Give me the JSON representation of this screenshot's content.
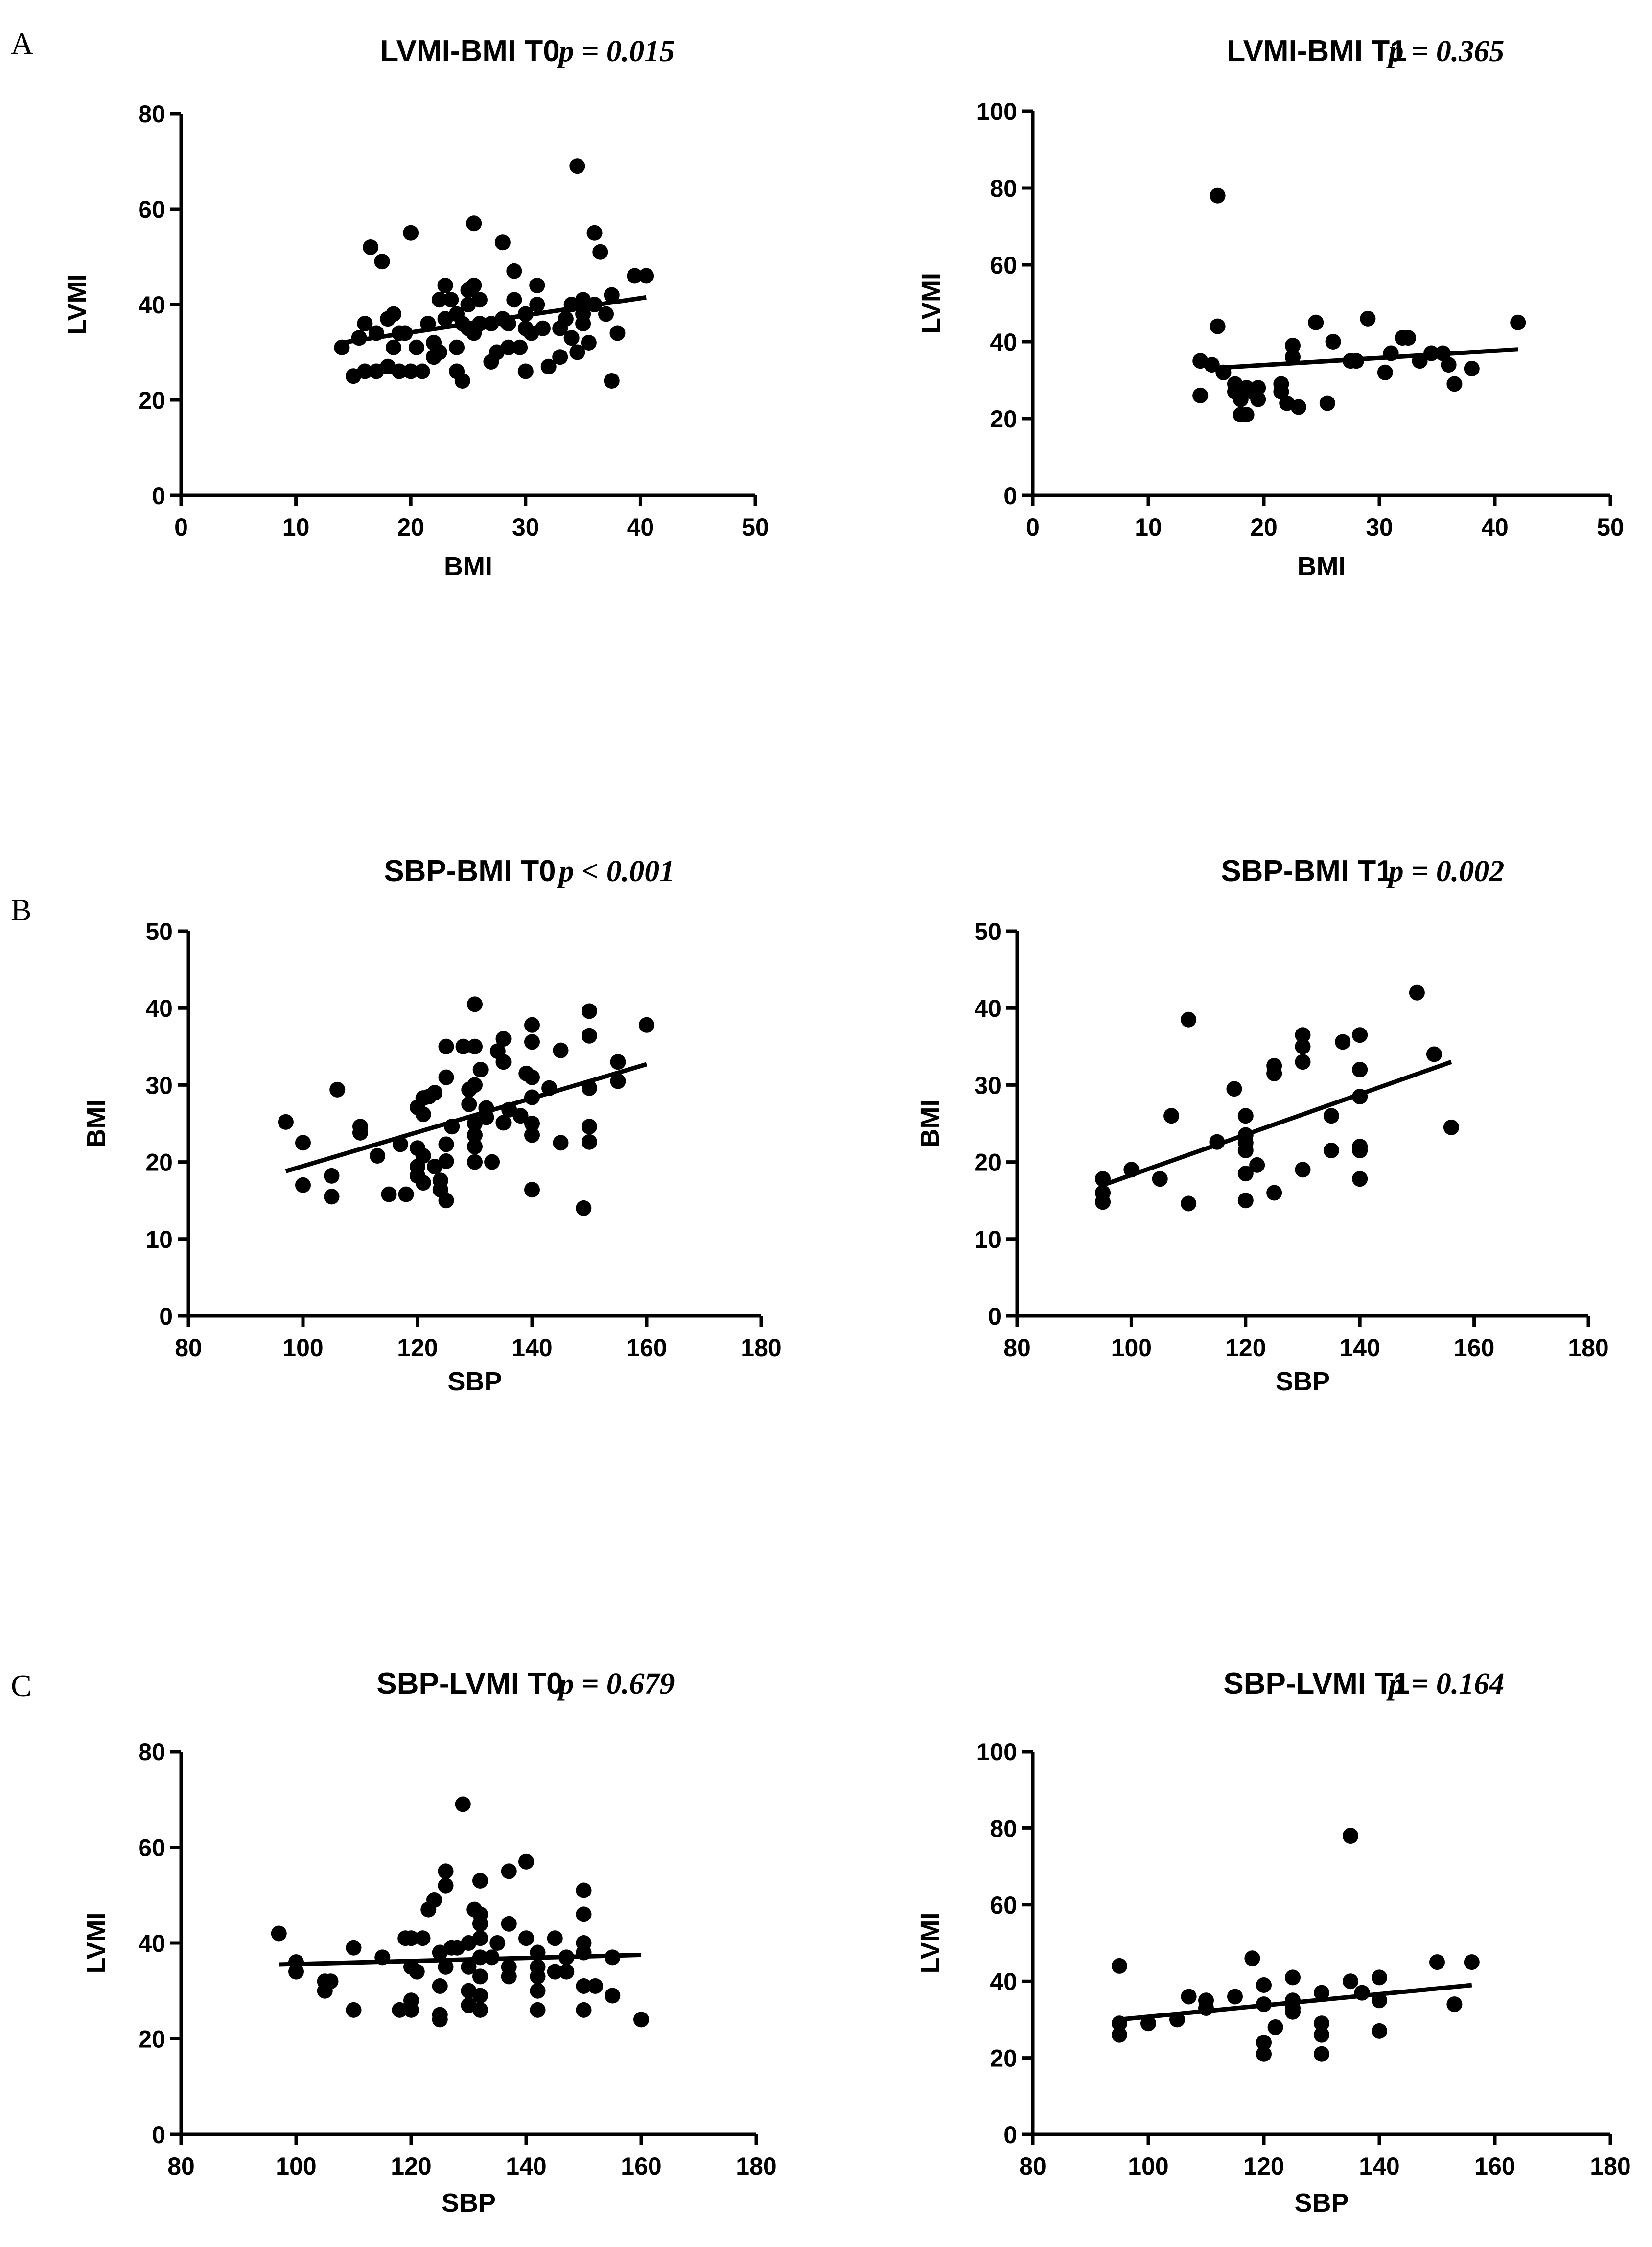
{
  "panel_letters": [
    "A",
    "B",
    "C"
  ],
  "chart_data": [
    {
      "type": "scatter",
      "panel": "A",
      "title": "LVMI-BMI T0",
      "p_value": "p = 0.015",
      "xlabel": "BMI",
      "ylabel": "LVMI",
      "xlim": [
        0,
        50
      ],
      "ylim": [
        0,
        80
      ],
      "xticks": [
        0,
        10,
        20,
        30,
        40,
        50
      ],
      "yticks": [
        0,
        20,
        40,
        60,
        80
      ],
      "fit_line": [
        [
          14,
          32
        ],
        [
          40.5,
          41.5
        ]
      ],
      "points": [
        [
          14,
          31
        ],
        [
          15,
          25
        ],
        [
          15.5,
          33
        ],
        [
          16,
          36
        ],
        [
          16,
          26
        ],
        [
          16.5,
          52
        ],
        [
          17,
          26
        ],
        [
          17,
          34
        ],
        [
          17.5,
          49
        ],
        [
          18,
          27
        ],
        [
          18,
          37
        ],
        [
          18.5,
          31
        ],
        [
          18.5,
          38
        ],
        [
          19,
          26
        ],
        [
          19,
          34
        ],
        [
          19.5,
          34
        ],
        [
          20,
          26
        ],
        [
          20,
          55
        ],
        [
          20.5,
          31
        ],
        [
          21,
          26
        ],
        [
          21.5,
          36
        ],
        [
          22,
          29
        ],
        [
          22,
          32
        ],
        [
          22.5,
          30
        ],
        [
          22.5,
          41
        ],
        [
          23,
          37
        ],
        [
          23,
          44
        ],
        [
          23.5,
          41
        ],
        [
          24,
          26
        ],
        [
          24,
          31
        ],
        [
          24,
          38
        ],
        [
          24.5,
          24
        ],
        [
          24.5,
          36
        ],
        [
          25,
          35
        ],
        [
          25,
          40
        ],
        [
          25,
          43
        ],
        [
          25.5,
          34
        ],
        [
          25.5,
          44
        ],
        [
          25.5,
          57
        ],
        [
          26,
          36
        ],
        [
          26,
          41
        ],
        [
          27,
          28
        ],
        [
          27,
          36
        ],
        [
          27.5,
          30
        ],
        [
          28,
          53
        ],
        [
          28,
          37
        ],
        [
          28.5,
          31
        ],
        [
          28.5,
          36
        ],
        [
          29,
          47
        ],
        [
          29,
          41
        ],
        [
          29.5,
          31
        ],
        [
          30,
          26
        ],
        [
          30,
          35
        ],
        [
          30,
          38
        ],
        [
          30.5,
          34
        ],
        [
          31,
          40
        ],
        [
          31,
          44
        ],
        [
          31.5,
          35
        ],
        [
          32,
          27
        ],
        [
          33,
          29
        ],
        [
          33,
          35
        ],
        [
          33.5,
          37
        ],
        [
          34,
          40
        ],
        [
          34,
          33
        ],
        [
          34.5,
          69
        ],
        [
          34.5,
          30
        ],
        [
          35,
          41
        ],
        [
          35,
          36
        ],
        [
          35,
          38
        ],
        [
          35.5,
          32
        ],
        [
          36,
          55
        ],
        [
          36,
          40
        ],
        [
          36.5,
          51
        ],
        [
          37,
          38
        ],
        [
          37.5,
          42
        ],
        [
          37.5,
          24
        ],
        [
          38,
          34
        ],
        [
          39.5,
          46
        ],
        [
          40.5,
          46
        ]
      ]
    },
    {
      "type": "scatter",
      "panel": "A",
      "title": "LVMI-BMI T1",
      "p_value": "p = 0.365",
      "xlabel": "BMI",
      "ylabel": "LVMI",
      "xlim": [
        0,
        50
      ],
      "ylim": [
        0,
        100
      ],
      "xticks": [
        0,
        10,
        20,
        30,
        40,
        50
      ],
      "yticks": [
        0,
        20,
        40,
        60,
        80,
        100
      ],
      "fit_line": [
        [
          15,
          33
        ],
        [
          42,
          38
        ]
      ],
      "points": [
        [
          14.5,
          35
        ],
        [
          14.5,
          26
        ],
        [
          15.5,
          34
        ],
        [
          16,
          44
        ],
        [
          16,
          78
        ],
        [
          16.5,
          32
        ],
        [
          17.5,
          29
        ],
        [
          17.5,
          27
        ],
        [
          18,
          21
        ],
        [
          18,
          25
        ],
        [
          18.5,
          21
        ],
        [
          18.5,
          28
        ],
        [
          19,
          27
        ],
        [
          19.5,
          25
        ],
        [
          19.5,
          28
        ],
        [
          21.5,
          27
        ],
        [
          21.5,
          29
        ],
        [
          22,
          24
        ],
        [
          22.5,
          39
        ],
        [
          22.5,
          36
        ],
        [
          23,
          23
        ],
        [
          24.5,
          45
        ],
        [
          25.5,
          24
        ],
        [
          26,
          40
        ],
        [
          27.5,
          35
        ],
        [
          28,
          35
        ],
        [
          29,
          46
        ],
        [
          30.5,
          32
        ],
        [
          31,
          37
        ],
        [
          32,
          41
        ],
        [
          32.5,
          41
        ],
        [
          33.5,
          35
        ],
        [
          34.5,
          37
        ],
        [
          35.5,
          37
        ],
        [
          36,
          34
        ],
        [
          36.5,
          29
        ],
        [
          38,
          33
        ],
        [
          42,
          45
        ]
      ]
    },
    {
      "type": "scatter",
      "panel": "B",
      "title": "SBP-BMI T0",
      "p_value": "p < 0.001",
      "xlabel": "SBP",
      "ylabel": "BMI",
      "xlim": [
        80,
        180
      ],
      "ylim": [
        0,
        50
      ],
      "xticks": [
        80,
        100,
        120,
        140,
        160,
        180
      ],
      "yticks": [
        0,
        10,
        20,
        30,
        40,
        50
      ],
      "fit_line": [
        [
          97,
          18.8
        ],
        [
          160,
          32.7
        ]
      ],
      "points": [
        [
          97,
          25.2
        ],
        [
          100,
          22.5
        ],
        [
          100,
          17
        ],
        [
          105,
          18.2
        ],
        [
          105,
          15.5
        ],
        [
          106,
          29.4
        ],
        [
          110,
          24.6
        ],
        [
          110,
          23.8
        ],
        [
          113,
          20.8
        ],
        [
          115,
          15.8
        ],
        [
          117,
          22.3
        ],
        [
          118,
          15.8
        ],
        [
          120,
          27.1
        ],
        [
          120,
          21.8
        ],
        [
          120,
          19.4
        ],
        [
          120,
          18.2
        ],
        [
          121,
          26.2
        ],
        [
          121,
          28.3
        ],
        [
          121,
          20.8
        ],
        [
          121,
          17.3
        ],
        [
          122,
          28.5
        ],
        [
          123,
          29
        ],
        [
          123,
          19.4
        ],
        [
          124,
          17.6
        ],
        [
          124,
          16.4
        ],
        [
          125,
          35
        ],
        [
          125,
          31
        ],
        [
          125,
          22.3
        ],
        [
          125,
          20.1
        ],
        [
          125,
          15
        ],
        [
          126,
          24.6
        ],
        [
          128,
          35
        ],
        [
          129,
          29.4
        ],
        [
          129,
          27.5
        ],
        [
          130,
          40.5
        ],
        [
          130,
          35
        ],
        [
          130,
          30
        ],
        [
          130,
          25
        ],
        [
          130,
          23.5
        ],
        [
          130,
          22
        ],
        [
          130,
          20
        ],
        [
          131,
          32
        ],
        [
          132,
          27
        ],
        [
          132,
          25.8
        ],
        [
          133,
          20
        ],
        [
          134,
          34.4
        ],
        [
          135,
          36
        ],
        [
          135,
          33
        ],
        [
          135,
          25.1
        ],
        [
          136,
          26.8
        ],
        [
          138,
          26
        ],
        [
          139,
          31.5
        ],
        [
          140,
          37.8
        ],
        [
          140,
          35.6
        ],
        [
          140,
          31
        ],
        [
          140,
          28.4
        ],
        [
          140,
          25
        ],
        [
          140,
          23.5
        ],
        [
          140,
          16.4
        ],
        [
          143,
          29.6
        ],
        [
          145,
          34.5
        ],
        [
          145,
          22.5
        ],
        [
          149,
          14
        ],
        [
          150,
          39.6
        ],
        [
          150,
          36.4
        ],
        [
          150,
          29.6
        ],
        [
          150,
          24.6
        ],
        [
          150,
          22.6
        ],
        [
          155,
          33
        ],
        [
          155,
          30.5
        ],
        [
          160,
          37.8
        ]
      ]
    },
    {
      "type": "scatter",
      "panel": "B",
      "title": "SBP-BMI T1",
      "p_value": "p = 0.002",
      "xlabel": "SBP",
      "ylabel": "BMI",
      "xlim": [
        80,
        180
      ],
      "ylim": [
        0,
        50
      ],
      "xticks": [
        80,
        100,
        120,
        140,
        160,
        180
      ],
      "yticks": [
        0,
        10,
        20,
        30,
        40,
        50
      ],
      "fit_line": [
        [
          95,
          17
        ],
        [
          156,
          33
        ]
      ],
      "points": [
        [
          95,
          17.8
        ],
        [
          95,
          16
        ],
        [
          95,
          14.8
        ],
        [
          100,
          19
        ],
        [
          105,
          17.8
        ],
        [
          107,
          26
        ],
        [
          110,
          38.5
        ],
        [
          110,
          14.6
        ],
        [
          115,
          22.6
        ],
        [
          118,
          29.5
        ],
        [
          120,
          26
        ],
        [
          120,
          23.5
        ],
        [
          120,
          22.5
        ],
        [
          120,
          21.5
        ],
        [
          120,
          18.5
        ],
        [
          120,
          15
        ],
        [
          122,
          19.6
        ],
        [
          125,
          32.5
        ],
        [
          125,
          31.5
        ],
        [
          125,
          16
        ],
        [
          130,
          36.5
        ],
        [
          130,
          35
        ],
        [
          130,
          33
        ],
        [
          130,
          19
        ],
        [
          135,
          26
        ],
        [
          135,
          21.5
        ],
        [
          137,
          35.6
        ],
        [
          140,
          36.5
        ],
        [
          140,
          32
        ],
        [
          140,
          28.5
        ],
        [
          140,
          22
        ],
        [
          140,
          21.5
        ],
        [
          140,
          17.8
        ],
        [
          150,
          42
        ],
        [
          153,
          34
        ],
        [
          156,
          24.5
        ]
      ]
    },
    {
      "type": "scatter",
      "panel": "C",
      "title": "SBP-LVMI T0",
      "p_value": "p = 0.679",
      "xlabel": "SBP",
      "ylabel": "LVMI",
      "xlim": [
        80,
        180
      ],
      "ylim": [
        0,
        80
      ],
      "xticks": [
        80,
        100,
        120,
        140,
        160,
        180
      ],
      "yticks": [
        0,
        20,
        40,
        60,
        80
      ],
      "fit_line": [
        [
          97,
          35.5
        ],
        [
          160,
          37.5
        ]
      ],
      "points": [
        [
          97,
          42
        ],
        [
          100,
          36
        ],
        [
          100,
          34
        ],
        [
          105,
          32
        ],
        [
          105,
          30
        ],
        [
          106,
          32
        ],
        [
          110,
          39
        ],
        [
          110,
          26
        ],
        [
          115,
          37
        ],
        [
          118,
          26
        ],
        [
          119,
          41
        ],
        [
          120,
          41
        ],
        [
          120,
          35
        ],
        [
          120,
          28
        ],
        [
          120,
          26
        ],
        [
          121,
          34
        ],
        [
          122,
          41
        ],
        [
          123,
          47
        ],
        [
          124,
          49
        ],
        [
          125,
          38
        ],
        [
          125,
          31
        ],
        [
          125,
          25
        ],
        [
          125,
          24
        ],
        [
          126,
          55
        ],
        [
          126,
          52
        ],
        [
          126,
          35
        ],
        [
          127,
          39
        ],
        [
          128,
          39
        ],
        [
          129,
          69
        ],
        [
          130,
          40
        ],
        [
          130,
          35
        ],
        [
          130,
          30
        ],
        [
          130,
          27
        ],
        [
          131,
          47
        ],
        [
          132,
          53
        ],
        [
          132,
          46
        ],
        [
          132,
          44
        ],
        [
          132,
          41
        ],
        [
          132,
          37
        ],
        [
          132,
          33
        ],
        [
          132,
          29
        ],
        [
          132,
          26
        ],
        [
          134,
          37
        ],
        [
          135,
          40
        ],
        [
          137,
          55
        ],
        [
          137,
          44
        ],
        [
          137,
          35
        ],
        [
          137,
          33
        ],
        [
          140,
          57
        ],
        [
          140,
          41
        ],
        [
          142,
          38
        ],
        [
          142,
          35
        ],
        [
          142,
          33
        ],
        [
          142,
          30
        ],
        [
          142,
          26
        ],
        [
          145,
          41
        ],
        [
          145,
          34
        ],
        [
          147,
          37
        ],
        [
          147,
          34
        ],
        [
          150,
          51
        ],
        [
          150,
          46
        ],
        [
          150,
          40
        ],
        [
          150,
          38
        ],
        [
          150,
          31
        ],
        [
          150,
          26
        ],
        [
          152,
          31
        ],
        [
          155,
          37
        ],
        [
          155,
          29
        ],
        [
          160,
          24
        ]
      ]
    },
    {
      "type": "scatter",
      "panel": "C",
      "title": "SBP-LVMI T1",
      "p_value": "p = 0.164",
      "xlabel": "SBP",
      "ylabel": "LVMI",
      "xlim": [
        80,
        180
      ],
      "ylim": [
        0,
        100
      ],
      "xticks": [
        80,
        100,
        120,
        140,
        160,
        180
      ],
      "yticks": [
        0,
        20,
        40,
        60,
        80,
        100
      ],
      "fit_line": [
        [
          95,
          30
        ],
        [
          156,
          39
        ]
      ],
      "points": [
        [
          95,
          44
        ],
        [
          95,
          29
        ],
        [
          95,
          26
        ],
        [
          100,
          29
        ],
        [
          105,
          30
        ],
        [
          107,
          36
        ],
        [
          110,
          35
        ],
        [
          110,
          33
        ],
        [
          115,
          36
        ],
        [
          118,
          46
        ],
        [
          120,
          39
        ],
        [
          120,
          34
        ],
        [
          120,
          24
        ],
        [
          120,
          21
        ],
        [
          122,
          28
        ],
        [
          125,
          41
        ],
        [
          125,
          35
        ],
        [
          125,
          33
        ],
        [
          125,
          32
        ],
        [
          130,
          37
        ],
        [
          130,
          29
        ],
        [
          130,
          26
        ],
        [
          130,
          21
        ],
        [
          135,
          78
        ],
        [
          135,
          40
        ],
        [
          137,
          37
        ],
        [
          140,
          41
        ],
        [
          140,
          35
        ],
        [
          140,
          27
        ],
        [
          150,
          45
        ],
        [
          153,
          34
        ],
        [
          156,
          45
        ]
      ]
    }
  ]
}
